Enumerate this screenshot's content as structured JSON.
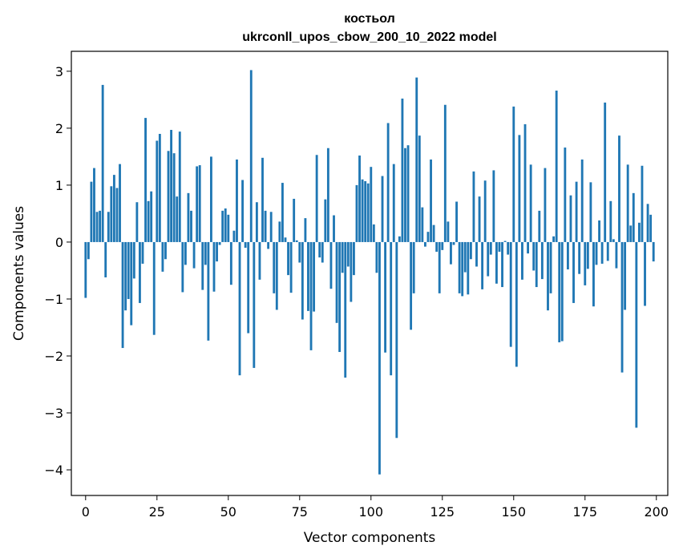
{
  "chart_data": {
    "type": "bar",
    "title": "костьол",
    "subtitle": "ukrconll_upos_cbow_200_10_2022 model",
    "xlabel": "Vector components",
    "ylabel": "Components values",
    "xlim": [
      -5,
      204
    ],
    "ylim": [
      -4.45,
      3.35
    ],
    "xticks": [
      0,
      25,
      50,
      75,
      100,
      125,
      150,
      175,
      200
    ],
    "yticks": [
      -4,
      -3,
      -2,
      -1,
      0,
      1,
      2,
      3
    ],
    "grid": false,
    "legend": "none",
    "color": "#1f77b4",
    "x_start": 0,
    "values": [
      -0.98,
      -0.3,
      1.06,
      1.3,
      0.53,
      0.55,
      2.76,
      -0.62,
      0.53,
      0.98,
      1.18,
      0.95,
      1.37,
      -1.86,
      -1.2,
      -1.0,
      -1.46,
      -0.64,
      0.7,
      -1.07,
      -0.38,
      2.18,
      0.72,
      0.89,
      -1.63,
      1.78,
      1.9,
      -0.52,
      -0.3,
      1.6,
      1.97,
      1.56,
      0.8,
      1.94,
      -0.88,
      -0.4,
      0.86,
      0.55,
      -0.46,
      1.33,
      1.35,
      -0.84,
      -0.4,
      -1.73,
      1.5,
      -0.87,
      -0.34,
      -0.05,
      0.55,
      0.59,
      0.48,
      -0.75,
      0.2,
      1.45,
      -2.34,
      1.09,
      -0.1,
      -1.6,
      3.02,
      -2.21,
      0.7,
      -0.66,
      1.48,
      0.55,
      -0.12,
      0.53,
      -0.9,
      -1.19,
      0.36,
      1.04,
      0.08,
      -0.58,
      -0.89,
      0.76,
      0.03,
      -0.36,
      -1.36,
      0.42,
      -1.21,
      -1.9,
      -1.22,
      1.53,
      -0.27,
      -0.36,
      0.75,
      1.65,
      -0.82,
      0.47,
      -1.42,
      -1.93,
      -0.54,
      -2.38,
      -0.43,
      -1.05,
      -0.58,
      1.0,
      1.52,
      1.1,
      1.07,
      1.03,
      1.32,
      0.31,
      -0.54,
      -4.08,
      1.16,
      -1.94,
      2.09,
      -2.34,
      1.37,
      -3.44,
      0.1,
      2.52,
      1.65,
      1.7,
      -1.54,
      -0.9,
      2.89,
      1.87,
      0.61,
      -0.08,
      0.18,
      1.45,
      0.3,
      -0.17,
      -0.9,
      -0.14,
      2.41,
      0.36,
      -0.39,
      -0.05,
      0.71,
      -0.9,
      -0.95,
      -0.53,
      -0.92,
      -0.3,
      1.24,
      -0.43,
      0.8,
      -0.83,
      1.08,
      -0.6,
      -0.22,
      1.26,
      -0.73,
      -0.17,
      -0.79,
      0.02,
      -0.22,
      -1.84,
      2.38,
      -2.19,
      1.88,
      -0.66,
      2.07,
      -0.2,
      1.36,
      -0.5,
      -0.79,
      0.55,
      -0.65,
      1.3,
      -1.2,
      -0.9,
      0.1,
      2.66,
      -1.76,
      -1.74,
      1.66,
      -0.48,
      0.82,
      -1.07,
      1.06,
      -0.56,
      1.45,
      -0.76,
      -0.47,
      1.05,
      -1.13,
      -0.4,
      0.38,
      -0.38,
      2.45,
      -0.33,
      0.72,
      0.05,
      -0.46,
      1.87,
      -2.29,
      -1.19,
      1.36,
      0.29,
      0.86,
      -3.26,
      0.34,
      1.34,
      -1.12,
      0.67,
      0.48,
      -0.34
    ]
  }
}
